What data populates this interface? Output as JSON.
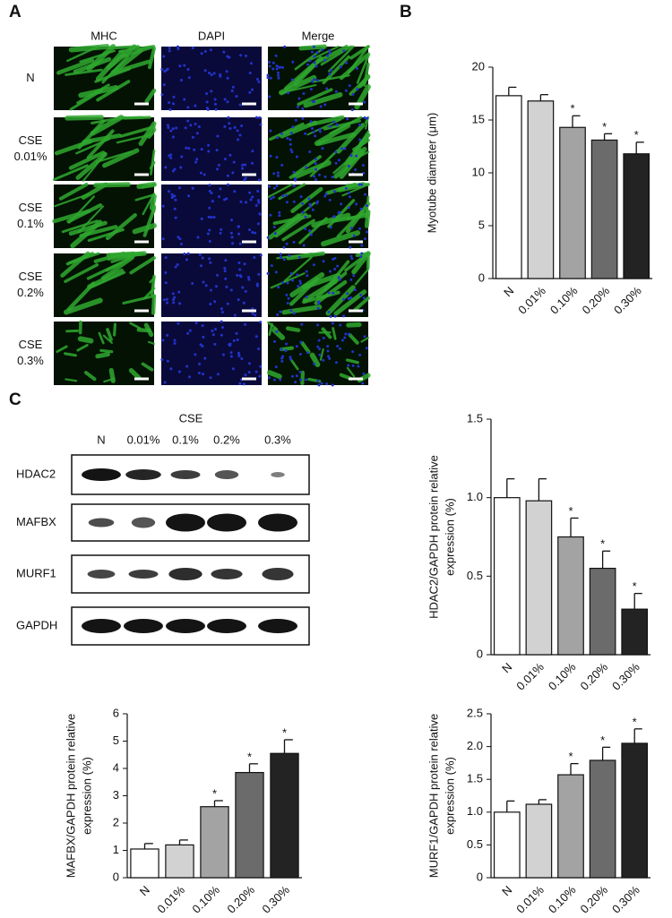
{
  "panels": [
    "A",
    "B",
    "C"
  ],
  "microscopy": {
    "columns": [
      "MHC",
      "DAPI",
      "Merge"
    ],
    "rows": [
      [
        "N"
      ],
      [
        "CSE",
        "0.01%"
      ],
      [
        "CSE",
        "0.1%"
      ],
      [
        "CSE",
        "0.2%"
      ],
      [
        "CSE",
        "0.3%"
      ]
    ]
  },
  "blot": {
    "group": "CSE",
    "lanes": [
      "N",
      "0.01%",
      "0.1%",
      "0.2%",
      "0.3%"
    ],
    "rows": [
      "HDAC2",
      "MAFBX",
      "MURF1",
      "GAPDH"
    ]
  },
  "chart_data": [
    {
      "type": "bar",
      "ylabel": [
        "Myotube diameter (μm)"
      ],
      "categories": [
        "N",
        "0.01%",
        "0.10%",
        "0.20%",
        "0.30%"
      ],
      "values": [
        17.3,
        16.8,
        14.3,
        13.1,
        11.8
      ],
      "errors": [
        0.8,
        0.6,
        1.1,
        0.6,
        1.1
      ],
      "significance": [
        null,
        null,
        "*",
        "*",
        "*"
      ],
      "colors": [
        "#ffffff",
        "#d2d2d2",
        "#a3a3a3",
        "#6b6b6b",
        "#232323"
      ],
      "ylim": [
        0,
        20
      ],
      "yticks": [
        0,
        5,
        10,
        15,
        20
      ]
    },
    {
      "type": "bar",
      "ylabel": [
        "HDAC2/GAPDH protein relative",
        "expression (%)"
      ],
      "categories": [
        "N",
        "0.01%",
        "0.10%",
        "0.20%",
        "0.30%"
      ],
      "values": [
        1.0,
        0.98,
        0.75,
        0.55,
        0.29
      ],
      "errors": [
        0.12,
        0.14,
        0.12,
        0.11,
        0.1
      ],
      "significance": [
        null,
        null,
        "*",
        "*",
        "*"
      ],
      "colors": [
        "#ffffff",
        "#d2d2d2",
        "#a3a3a3",
        "#6b6b6b",
        "#232323"
      ],
      "ylim": [
        0,
        1.5
      ],
      "yticks": [
        0,
        0.5,
        {
          "value": 1,
          "label": "1.0"
        },
        1.5
      ]
    },
    {
      "type": "bar",
      "ylabel": [
        "MAFBX/GAPDH protein relative",
        "expression (%)"
      ],
      "categories": [
        "N",
        "0.01%",
        "0.10%",
        "0.20%",
        "0.30%"
      ],
      "values": [
        1.05,
        1.2,
        2.6,
        3.85,
        4.55
      ],
      "errors": [
        0.2,
        0.18,
        0.22,
        0.32,
        0.5
      ],
      "significance": [
        null,
        null,
        "*",
        "*",
        "*"
      ],
      "colors": [
        "#ffffff",
        "#d2d2d2",
        "#a3a3a3",
        "#6b6b6b",
        "#232323"
      ],
      "ylim": [
        0,
        6
      ],
      "yticks": [
        0,
        1,
        2,
        3,
        4,
        5,
        6
      ]
    },
    {
      "type": "bar",
      "ylabel": [
        "MURF1/GAPDH protein relative",
        "expression (%)"
      ],
      "categories": [
        "N",
        "0.01%",
        "0.10%",
        "0.20%",
        "0.30%"
      ],
      "values": [
        1.0,
        1.12,
        1.57,
        1.79,
        2.05
      ],
      "errors": [
        0.17,
        0.07,
        0.17,
        0.2,
        0.22
      ],
      "significance": [
        null,
        null,
        "*",
        "*",
        "*"
      ],
      "colors": [
        "#ffffff",
        "#d2d2d2",
        "#a3a3a3",
        "#6b6b6b",
        "#232323"
      ],
      "ylim": [
        0,
        2.5
      ],
      "yticks": [
        0,
        0.5,
        {
          "value": 1,
          "label": "1.0"
        },
        1.5,
        {
          "value": 2,
          "label": "2.0"
        },
        2.5
      ]
    }
  ]
}
